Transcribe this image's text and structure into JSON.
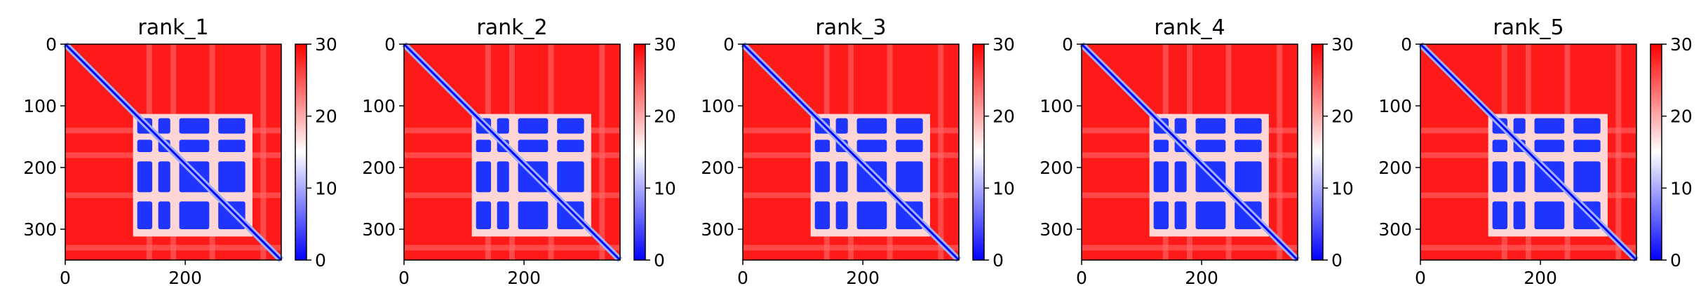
{
  "chart_data": [
    {
      "type": "heatmap",
      "title": "rank_1",
      "x_range": [
        0,
        360
      ],
      "y_range": [
        0,
        350
      ],
      "x_ticks": [
        0,
        200
      ],
      "y_ticks": [
        0,
        100,
        200,
        300
      ],
      "colorbar": {
        "colormap": "bwr",
        "range": [
          0,
          30
        ],
        "ticks": [
          0,
          10,
          20,
          30
        ]
      },
      "grid": false,
      "blocks": [
        [
          120,
          305
        ],
        [
          155,
          175
        ],
        [
          190,
          240
        ],
        [
          255,
          300
        ]
      ]
    },
    {
      "type": "heatmap",
      "title": "rank_2",
      "x_range": [
        0,
        360
      ],
      "y_range": [
        0,
        350
      ],
      "x_ticks": [
        0,
        200
      ],
      "y_ticks": [
        0,
        100,
        200,
        300
      ],
      "colorbar": {
        "colormap": "bwr",
        "range": [
          0,
          30
        ],
        "ticks": [
          0,
          10,
          20,
          30
        ]
      },
      "grid": false,
      "blocks": [
        [
          120,
          305
        ],
        [
          155,
          175
        ],
        [
          190,
          240
        ],
        [
          255,
          300
        ]
      ]
    },
    {
      "type": "heatmap",
      "title": "rank_3",
      "x_range": [
        0,
        360
      ],
      "y_range": [
        0,
        350
      ],
      "x_ticks": [
        0,
        200
      ],
      "y_ticks": [
        0,
        100,
        200,
        300
      ],
      "colorbar": {
        "colormap": "bwr",
        "range": [
          0,
          30
        ],
        "ticks": [
          0,
          10,
          20,
          30
        ]
      },
      "grid": false,
      "blocks": [
        [
          120,
          305
        ],
        [
          155,
          175
        ],
        [
          190,
          240
        ],
        [
          255,
          300
        ]
      ]
    },
    {
      "type": "heatmap",
      "title": "rank_4",
      "x_range": [
        0,
        360
      ],
      "y_range": [
        0,
        350
      ],
      "x_ticks": [
        0,
        200
      ],
      "y_ticks": [
        0,
        100,
        200,
        300
      ],
      "colorbar": {
        "colormap": "bwr",
        "range": [
          0,
          30
        ],
        "ticks": [
          0,
          10,
          20,
          30
        ]
      },
      "grid": false,
      "blocks": [
        [
          120,
          305
        ],
        [
          155,
          175
        ],
        [
          190,
          240
        ],
        [
          255,
          300
        ]
      ]
    },
    {
      "type": "heatmap",
      "title": "rank_5",
      "x_range": [
        0,
        360
      ],
      "y_range": [
        0,
        350
      ],
      "x_ticks": [
        0,
        200
      ],
      "y_ticks": [
        0,
        100,
        200,
        300
      ],
      "colorbar": {
        "colormap": "bwr",
        "range": [
          0,
          30
        ],
        "ticks": [
          0,
          10,
          20,
          30
        ]
      },
      "grid": false,
      "blocks": [
        [
          120,
          305
        ],
        [
          155,
          175
        ],
        [
          190,
          240
        ],
        [
          255,
          300
        ]
      ]
    }
  ]
}
